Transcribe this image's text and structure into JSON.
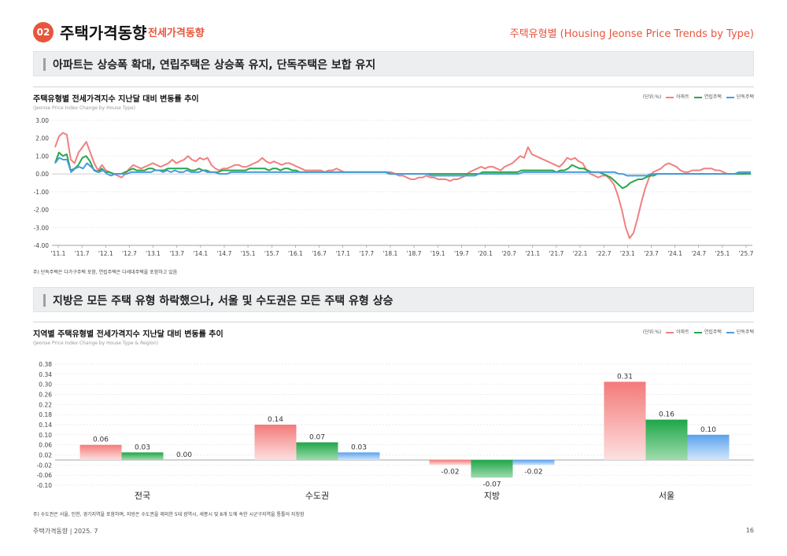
{
  "header": {
    "badge": "02",
    "title": "주택가격동향",
    "subtitle": "전세가격동향",
    "right": "주택유형별 (Housing Jeonse Price Trends by Type)"
  },
  "banner1": "아파트는 상승폭 확대, 연립주택은 상승폭 유지, 단독주택은 보합 유지",
  "banner2": "지방은 모든 주택 유형 하락했으나, 서울 및 수도권은 모든 주택 유형 상승",
  "chart1_title": "주택유형별 전세가격지수 지난달 대비 변동률 추이",
  "chart1_en": "(Jeonse Price Index Change by House Type)",
  "chart2_title": "지역별 주택유형별 전세가격지수 지난달 대비 변동률 추이",
  "chart2_en": "(Jeonse Price Index Change by House Type & Region)",
  "legend": {
    "unit": "(단위:%)",
    "apt": "아파트",
    "row": "연립주택",
    "det": "단독주택"
  },
  "note1": "주) 단독주택은 다가구주택 포함, 연립주택은 다세대주택을 포함하고 있음",
  "note2": "주) 수도권은 서울, 인천, 경기지역을 포함하며, 지방은 수도권을 제외한 5대 광역시, 세종시 및 8개 도에 속한 시군구지역을 통틀어 지칭함",
  "footer": "주택가격동향   |   2025. 7",
  "page_number": "16",
  "colors": {
    "apt": "#f08080",
    "row": "#22a84a",
    "det": "#4a9be0",
    "accent": "#e8553d"
  },
  "chart_data": [
    {
      "type": "line",
      "title": "주택유형별 전세가격지수 지난달 대비 변동률 추이",
      "ylim": [
        -4.0,
        3.0
      ],
      "yticks": [
        "3.00",
        "2.00",
        "1.00",
        "0.00",
        "-1.00",
        "-2.00",
        "-3.00",
        "-4.00"
      ],
      "xticks": [
        "'11.1",
        "'11.7",
        "'12.1",
        "'12.7",
        "'13.1",
        "'13.7",
        "'14.1",
        "'14.7",
        "'15.1",
        "'15.7",
        "'16.1",
        "'16.7",
        "'17.1",
        "'17.7",
        "'18.1",
        "'18.7",
        "'19.1",
        "'19.7",
        "'20.1",
        "'20.7",
        "'21.1",
        "'21.7",
        "'22.1",
        "'22.7",
        "'23.1",
        "'23.7",
        "'24.1",
        "'24.7",
        "'25.1",
        "'25.7"
      ],
      "series": [
        {
          "name": "아파트",
          "key": "apt",
          "values": [
            1.5,
            2.1,
            2.3,
            2.2,
            0.8,
            0.6,
            1.2,
            1.5,
            1.8,
            1.2,
            0.6,
            0.2,
            0.5,
            0.2,
            0.1,
            0.0,
            -0.1,
            -0.2,
            0.0,
            0.3,
            0.5,
            0.4,
            0.3,
            0.4,
            0.5,
            0.6,
            0.5,
            0.4,
            0.5,
            0.6,
            0.8,
            0.6,
            0.7,
            0.8,
            1.0,
            0.8,
            0.7,
            0.9,
            0.8,
            0.9,
            0.5,
            0.3,
            0.2,
            0.3,
            0.3,
            0.4,
            0.5,
            0.5,
            0.4,
            0.4,
            0.5,
            0.6,
            0.7,
            0.9,
            0.7,
            0.6,
            0.7,
            0.6,
            0.5,
            0.6,
            0.6,
            0.5,
            0.4,
            0.3,
            0.2,
            0.2,
            0.2,
            0.2,
            0.2,
            0.1,
            0.2,
            0.2,
            0.3,
            0.2,
            0.1,
            0.1,
            0.1,
            0.1,
            0.1,
            0.1,
            0.1,
            0.1,
            0.1,
            0.1,
            0.1,
            0.1,
            0.1,
            0.0,
            -0.1,
            -0.1,
            -0.2,
            -0.3,
            -0.3,
            -0.2,
            -0.2,
            -0.1,
            -0.2,
            -0.2,
            -0.3,
            -0.3,
            -0.3,
            -0.4,
            -0.3,
            -0.3,
            -0.2,
            -0.1,
            0.1,
            0.2,
            0.3,
            0.4,
            0.3,
            0.4,
            0.4,
            0.3,
            0.2,
            0.4,
            0.5,
            0.6,
            0.8,
            1.0,
            0.9,
            1.5,
            1.1,
            1.0,
            0.9,
            0.8,
            0.7,
            0.6,
            0.5,
            0.4,
            0.6,
            0.9,
            0.8,
            0.9,
            0.7,
            0.6,
            0.2,
            0.0,
            -0.1,
            -0.2,
            -0.1,
            -0.1,
            -0.3,
            -0.6,
            -1.2,
            -2.0,
            -3.0,
            -3.6,
            -3.3,
            -2.5,
            -1.6,
            -0.8,
            -0.2,
            0.1,
            0.2,
            0.3,
            0.5,
            0.6,
            0.5,
            0.4,
            0.2,
            0.1,
            0.1,
            0.2,
            0.2,
            0.2,
            0.3,
            0.3,
            0.3,
            0.2,
            0.2,
            0.1,
            0.0,
            0.0,
            0.0,
            0.0,
            0.0,
            0.1,
            0.1
          ]
        },
        {
          "name": "연립주택",
          "key": "row",
          "values": [
            0.6,
            1.2,
            1.0,
            1.1,
            0.2,
            0.3,
            0.5,
            0.9,
            1.0,
            0.7,
            0.2,
            0.1,
            0.3,
            0.1,
            0.1,
            0.0,
            0.0,
            0.0,
            0.1,
            0.2,
            0.3,
            0.2,
            0.2,
            0.2,
            0.3,
            0.3,
            0.2,
            0.2,
            0.2,
            0.3,
            0.3,
            0.3,
            0.3,
            0.3,
            0.3,
            0.2,
            0.2,
            0.3,
            0.2,
            0.2,
            0.1,
            0.1,
            0.1,
            0.2,
            0.2,
            0.2,
            0.2,
            0.2,
            0.2,
            0.2,
            0.3,
            0.3,
            0.3,
            0.3,
            0.3,
            0.2,
            0.3,
            0.3,
            0.2,
            0.3,
            0.3,
            0.2,
            0.2,
            0.1,
            0.1,
            0.1,
            0.1,
            0.1,
            0.1,
            0.1,
            0.1,
            0.1,
            0.1,
            0.1,
            0.1,
            0.1,
            0.1,
            0.1,
            0.1,
            0.1,
            0.1,
            0.1,
            0.1,
            0.1,
            0.1,
            0.1,
            0.0,
            0.0,
            0.0,
            0.0,
            0.0,
            0.0,
            0.0,
            0.0,
            0.0,
            0.0,
            0.0,
            0.0,
            0.0,
            0.0,
            0.0,
            0.0,
            0.0,
            0.0,
            0.0,
            0.0,
            0.0,
            0.0,
            0.0,
            0.0,
            0.1,
            0.1,
            0.1,
            0.1,
            0.1,
            0.1,
            0.1,
            0.1,
            0.1,
            0.1,
            0.2,
            0.2,
            0.2,
            0.2,
            0.2,
            0.2,
            0.2,
            0.2,
            0.2,
            0.1,
            0.2,
            0.2,
            0.3,
            0.5,
            0.4,
            0.3,
            0.3,
            0.2,
            0.1,
            0.1,
            0.1,
            0.0,
            -0.1,
            -0.2,
            -0.4,
            -0.6,
            -0.8,
            -0.7,
            -0.5,
            -0.4,
            -0.3,
            -0.3,
            -0.2,
            -0.1,
            -0.1,
            0.0,
            0.0,
            0.0,
            0.0,
            0.0,
            0.0,
            0.0,
            0.0,
            0.0,
            0.0,
            0.0,
            0.0,
            0.0,
            0.0,
            0.0,
            0.0,
            0.0,
            0.0,
            0.0,
            0.0,
            0.0,
            0.0,
            0.0,
            0.0,
            0.0
          ]
        },
        {
          "name": "단독주택",
          "key": "det",
          "values": [
            0.6,
            0.9,
            0.8,
            0.8,
            0.1,
            0.3,
            0.4,
            0.3,
            0.6,
            0.4,
            0.2,
            0.1,
            0.2,
            0.0,
            -0.1,
            0.0,
            0.0,
            0.0,
            0.0,
            0.1,
            0.1,
            0.1,
            0.1,
            0.1,
            0.1,
            0.2,
            0.2,
            0.1,
            0.2,
            0.1,
            0.2,
            0.1,
            0.1,
            0.2,
            0.1,
            0.1,
            0.1,
            0.2,
            0.1,
            0.1,
            0.1,
            0.0,
            0.0,
            0.0,
            0.1,
            0.1,
            0.1,
            0.1,
            0.1,
            0.1,
            0.1,
            0.1,
            0.1,
            0.1,
            0.1,
            0.1,
            0.1,
            0.1,
            0.1,
            0.1,
            0.1,
            0.1,
            0.1,
            0.1,
            0.1,
            0.1,
            0.1,
            0.1,
            0.1,
            0.1,
            0.1,
            0.1,
            0.1,
            0.1,
            0.1,
            0.1,
            0.1,
            0.1,
            0.1,
            0.1,
            0.1,
            0.1,
            0.1,
            0.1,
            0.0,
            0.0,
            0.0,
            0.0,
            0.0,
            0.0,
            0.0,
            0.0,
            0.0,
            0.0,
            -0.1,
            -0.1,
            -0.1,
            -0.1,
            -0.1,
            -0.1,
            -0.1,
            -0.1,
            -0.1,
            -0.1,
            -0.1,
            -0.1,
            0.0,
            0.0,
            0.0,
            0.0,
            0.0,
            0.0,
            0.0,
            0.0,
            0.0,
            0.0,
            0.0,
            0.1,
            0.1,
            0.1,
            0.1,
            0.1,
            0.1,
            0.1,
            0.1,
            0.1,
            0.1,
            0.1,
            0.1,
            0.1,
            0.1,
            0.1,
            0.1,
            0.1,
            0.1,
            0.1,
            0.1,
            0.1,
            0.1,
            0.1,
            0.1,
            0.0,
            0.0,
            -0.1,
            -0.1,
            -0.1,
            -0.1,
            -0.1,
            -0.1,
            0.0,
            0.0,
            0.0,
            0.0,
            0.0,
            0.0,
            0.0,
            0.0,
            0.0,
            0.0,
            0.0,
            0.0,
            0.0,
            0.0,
            0.0,
            0.0,
            0.0,
            0.0,
            0.0,
            0.0,
            0.0,
            0.0,
            0.1,
            0.1,
            0.1,
            0.1
          ]
        }
      ]
    },
    {
      "type": "bar",
      "title": "지역별 주택유형별 전세가격지수 지난달 대비 변동률 추이",
      "ylim": [
        -0.1,
        0.38
      ],
      "yticks": [
        "0.38",
        "0.34",
        "0.30",
        "0.26",
        "0.22",
        "0.18",
        "0.14",
        "0.10",
        "0.06",
        "0.02",
        "-0.02",
        "-0.06",
        "-0.10"
      ],
      "categories": [
        "전국",
        "수도권",
        "지방",
        "서울"
      ],
      "series": [
        {
          "name": "아파트",
          "key": "apt",
          "values": [
            0.06,
            0.14,
            -0.02,
            0.31
          ],
          "labels": [
            "0.06",
            "0.14",
            "-0.02",
            "0.31"
          ]
        },
        {
          "name": "연립주택",
          "key": "row",
          "values": [
            0.03,
            0.07,
            -0.07,
            0.16
          ],
          "labels": [
            "0.03",
            "0.07",
            "-0.07",
            "0.16"
          ]
        },
        {
          "name": "단독주택",
          "key": "det",
          "values": [
            0.0,
            0.03,
            -0.02,
            0.1
          ],
          "labels": [
            "0.00",
            "0.03",
            "-0.02",
            "0.10"
          ]
        }
      ]
    }
  ]
}
